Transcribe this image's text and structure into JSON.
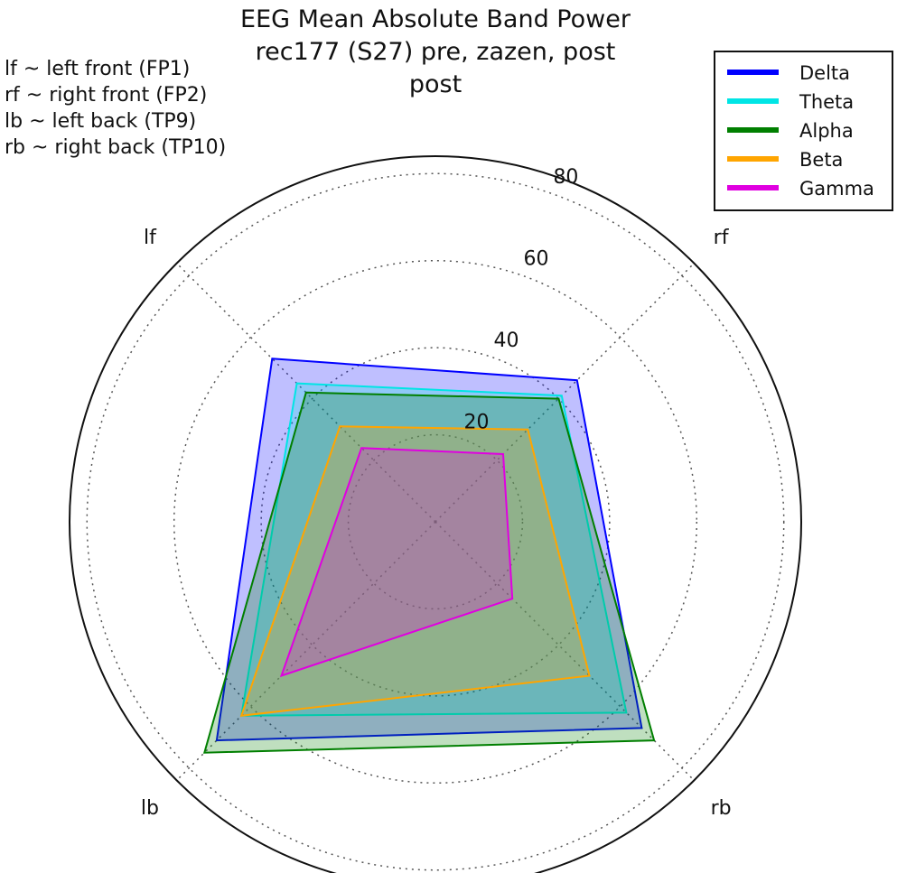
{
  "chart_data": {
    "type": "radar",
    "title": [
      "EEG Mean Absolute Band Power",
      "rec177 (S27) pre, zazen, post",
      "post"
    ],
    "notes": [
      "lf ~ left front (FP1)",
      "rf ~ right front (FP2)",
      "lb ~ left back (TP9)",
      "rb ~ right back (TP10)"
    ],
    "axes": [
      "lf",
      "rf",
      "rb",
      "lb"
    ],
    "r_ticks": [
      20,
      40,
      60,
      80
    ],
    "r_max": 84,
    "grid": true,
    "legend_position": "top-right",
    "series": [
      {
        "name": "Delta",
        "color": "#0000ff",
        "values": [
          53,
          46,
          67,
          71
        ]
      },
      {
        "name": "Theta",
        "color": "#00e5e5",
        "values": [
          45,
          41,
          62,
          63
        ]
      },
      {
        "name": "Alpha",
        "color": "#007f00",
        "values": [
          42,
          40,
          71,
          75
        ]
      },
      {
        "name": "Beta",
        "color": "#ffa500",
        "values": [
          31,
          30,
          50,
          63
        ]
      },
      {
        "name": "Gamma",
        "color": "#e000e0",
        "values": [
          24,
          22,
          25,
          50
        ]
      }
    ]
  }
}
